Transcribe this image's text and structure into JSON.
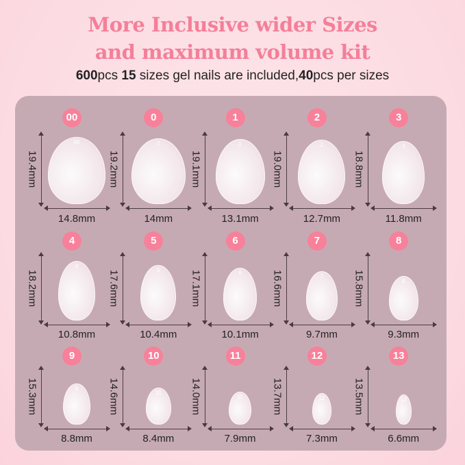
{
  "header": {
    "title_line1": "More Inclusive wider Sizes",
    "title_line2": "and maximum volume kit",
    "subtitle": {
      "n1": "600",
      "t1": "pcs ",
      "n2": "15",
      "t2": " sizes gel nails are included,",
      "n3": "40",
      "t3": "pcs per sizes"
    }
  },
  "colors": {
    "title": "#f47f99",
    "badge": "#f7819a",
    "panel": "#c6aab3",
    "background": "#fcdbe2"
  },
  "sizes": [
    {
      "size": "00",
      "length": "19.4mm",
      "width": "14.8mm",
      "length_mm": 19.4,
      "width_mm": 14.8
    },
    {
      "size": "0",
      "length": "19.2mm",
      "width": "14mm",
      "length_mm": 19.2,
      "width_mm": 14
    },
    {
      "size": "1",
      "length": "19.1mm",
      "width": "13.1mm",
      "length_mm": 19.1,
      "width_mm": 13.1
    },
    {
      "size": "2",
      "length": "19.0mm",
      "width": "12.7mm",
      "length_mm": 19.0,
      "width_mm": 12.7
    },
    {
      "size": "3",
      "length": "18.8mm",
      "width": "11.8mm",
      "length_mm": 18.8,
      "width_mm": 11.8
    },
    {
      "size": "4",
      "length": "18.2mm",
      "width": "10.8mm",
      "length_mm": 18.2,
      "width_mm": 10.8
    },
    {
      "size": "5",
      "length": "17.6mm",
      "width": "10.4mm",
      "length_mm": 17.6,
      "width_mm": 10.4
    },
    {
      "size": "6",
      "length": "17.1mm",
      "width": "10.1mm",
      "length_mm": 17.1,
      "width_mm": 10.1
    },
    {
      "size": "7",
      "length": "16.6mm",
      "width": "9.7mm",
      "length_mm": 16.6,
      "width_mm": 9.7
    },
    {
      "size": "8",
      "length": "15.8mm",
      "width": "9.3mm",
      "length_mm": 15.8,
      "width_mm": 9.3
    },
    {
      "size": "9",
      "length": "15.3mm",
      "width": "8.8mm",
      "length_mm": 15.3,
      "width_mm": 8.8
    },
    {
      "size": "10",
      "length": "14.6mm",
      "width": "8.4mm",
      "length_mm": 14.6,
      "width_mm": 8.4
    },
    {
      "size": "11",
      "length": "14.0mm",
      "width": "7.9mm",
      "length_mm": 14.0,
      "width_mm": 7.9
    },
    {
      "size": "12",
      "length": "13.7mm",
      "width": "7.3mm",
      "length_mm": 13.7,
      "width_mm": 7.3
    },
    {
      "size": "13",
      "length": "13.5mm",
      "width": "6.6mm",
      "length_mm": 13.5,
      "width_mm": 6.6
    }
  ]
}
